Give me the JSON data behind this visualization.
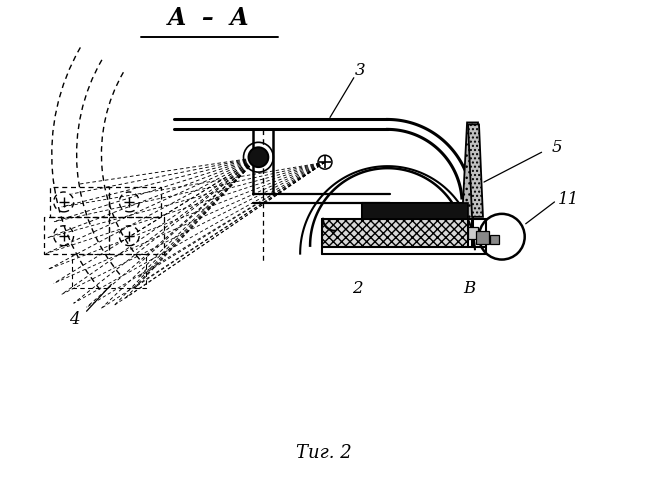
{
  "bg_color": "#ffffff",
  "lc": "#000000",
  "title": "A  –  A",
  "caption": "Τиг. 2",
  "figsize": [
    6.48,
    5.0
  ],
  "dpi": 100
}
